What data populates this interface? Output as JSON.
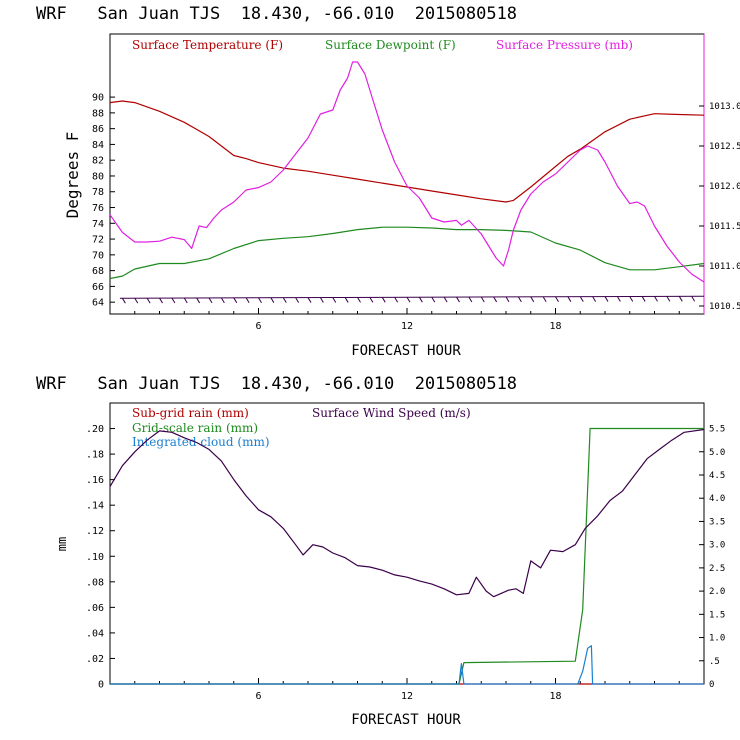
{
  "chart_data": [
    {
      "type": "line",
      "title": "WRF   San Juan TJS  18.430, -66.010  2015080518",
      "xlabel": "FORECAST HOUR",
      "ylabel": "Degrees F",
      "xlim": [
        0,
        24
      ],
      "ylim": [
        62.5,
        98
      ],
      "y2lim": [
        1010.4,
        1013.9
      ],
      "xticks": [
        "6",
        "12",
        "18"
      ],
      "yticks": [
        "64",
        "66",
        "68",
        "70",
        "72",
        "74",
        "76",
        "78",
        "80",
        "82",
        "84",
        "86",
        "88",
        "90"
      ],
      "y2ticks": [
        "1010.5",
        "1011.0",
        "1011.5",
        "1012.0",
        "1012.5",
        "1013.0"
      ],
      "legend": [
        "Surface Temperature (F)",
        "Surface Dewpoint (F)",
        "Surface Pressure (mb)"
      ],
      "wind_barbs": true,
      "series": [
        {
          "name": "Surface Temperature (F)",
          "axis": "left",
          "color": "#b00000",
          "x": [
            0,
            0.5,
            1,
            2,
            3,
            4,
            5,
            5.5,
            6,
            7,
            8,
            9,
            10,
            11,
            12,
            13,
            14,
            15,
            16,
            16.3,
            17,
            18,
            18.5,
            19,
            20,
            21,
            22,
            23,
            24
          ],
          "y": [
            89.3,
            89.5,
            89.3,
            88.2,
            86.8,
            85,
            82.6,
            82.2,
            81.7,
            81,
            80.6,
            80.1,
            79.6,
            79.1,
            78.6,
            78.1,
            77.6,
            77.1,
            76.7,
            76.9,
            78.6,
            81.2,
            82.5,
            83.4,
            85.6,
            87.2,
            87.9,
            87.8,
            87.7
          ]
        },
        {
          "name": "Surface Dewpoint (F)",
          "axis": "left",
          "color": "#1f8a1f",
          "x": [
            0,
            0.5,
            1,
            2,
            3,
            4,
            5,
            6,
            7,
            8,
            9,
            10,
            11,
            12,
            13,
            14,
            15,
            16,
            17,
            18,
            19,
            20,
            21,
            22,
            23,
            24
          ],
          "y": [
            67,
            67.3,
            68.2,
            68.9,
            68.9,
            69.5,
            70.8,
            71.8,
            72.1,
            72.3,
            72.7,
            73.2,
            73.5,
            73.5,
            73.4,
            73.2,
            73.2,
            73.1,
            72.9,
            71.5,
            70.6,
            69,
            68.1,
            68.1,
            68.5,
            68.9
          ]
        },
        {
          "name": "Surface Pressure (mb)",
          "axis": "right",
          "color": "#e020e0",
          "x": [
            0,
            0.5,
            1,
            1.5,
            2,
            2.5,
            3,
            3.3,
            3.6,
            3.9,
            4.2,
            4.5,
            5,
            5.5,
            6,
            6.5,
            7,
            7.5,
            8,
            8.5,
            9,
            9.3,
            9.6,
            9.8,
            10,
            10.3,
            10.6,
            11,
            11.5,
            12,
            12.5,
            13,
            13.5,
            14,
            14.2,
            14.5,
            15,
            15.3,
            15.6,
            15.9,
            16.1,
            16.3,
            16.6,
            17,
            17.5,
            18,
            18.5,
            19,
            19.3,
            19.7,
            20,
            20.5,
            21,
            21.3,
            21.6,
            22,
            22.5,
            23,
            23.5,
            24
          ],
          "y": [
            1011.64,
            1011.42,
            1011.3,
            1011.3,
            1011.31,
            1011.36,
            1011.33,
            1011.22,
            1011.5,
            1011.48,
            1011.6,
            1011.7,
            1011.8,
            1011.95,
            1011.98,
            1012.05,
            1012.2,
            1012.4,
            1012.6,
            1012.9,
            1012.95,
            1013.2,
            1013.35,
            1013.55,
            1013.55,
            1013.4,
            1013.1,
            1012.7,
            1012.3,
            1012.0,
            1011.85,
            1011.6,
            1011.55,
            1011.57,
            1011.51,
            1011.57,
            1011.4,
            1011.25,
            1011.1,
            1011.0,
            1011.2,
            1011.45,
            1011.7,
            1011.9,
            1012.05,
            1012.15,
            1012.3,
            1012.45,
            1012.5,
            1012.45,
            1012.3,
            1012.0,
            1011.78,
            1011.8,
            1011.75,
            1011.5,
            1011.25,
            1011.05,
            1010.9,
            1010.8
          ]
        }
      ]
    },
    {
      "type": "line",
      "title": "WRF   San Juan TJS  18.430, -66.010  2015080518",
      "xlabel": "FORECAST HOUR",
      "ylabel": "mm",
      "xlim": [
        0,
        24
      ],
      "ylim": [
        0,
        0.22
      ],
      "y2lim": [
        0,
        6.05
      ],
      "xticks": [
        "6",
        "12",
        "18"
      ],
      "yticks": [
        "0",
        ".02",
        ".04",
        ".06",
        ".08",
        ".10",
        ".12",
        ".14",
        ".16",
        ".18",
        ".20"
      ],
      "y2ticks": [
        "0",
        ".5",
        "1.0",
        "1.5",
        "2.0",
        "2.5",
        "3.0",
        "3.5",
        "4.0",
        "4.5",
        "5.0",
        "5.5"
      ],
      "legend": [
        "Sub-grid rain (mm)",
        "Grid-scale rain (mm)",
        "Integrated cloud (mm)",
        "Surface Wind Speed (m/s)"
      ],
      "series": [
        {
          "name": "Sub-grid rain (mm)",
          "axis": "right",
          "color": "#b00000",
          "x": [
            0,
            24
          ],
          "y": [
            0,
            0
          ]
        },
        {
          "name": "Grid-scale rain (mm)",
          "axis": "right",
          "color": "#1f8a1f",
          "x": [
            0,
            14.1,
            14.3,
            18.8,
            19.1,
            19.4,
            24
          ],
          "y": [
            0,
            0,
            0.46,
            0.49,
            1.6,
            5.5,
            5.5
          ]
        },
        {
          "name": "Integrated cloud (mm)",
          "axis": "left",
          "color": "#1a7fd0",
          "x": [
            0,
            14.1,
            14.2,
            14.3,
            18.9,
            19.1,
            19.3,
            19.45,
            19.5,
            24
          ],
          "y": [
            0,
            0,
            0.016,
            0,
            0,
            0.01,
            0.028,
            0.03,
            0,
            0
          ]
        },
        {
          "name": "Surface Wind Speed (m/s)",
          "axis": "right",
          "color": "#3a004a",
          "x": [
            0,
            0.5,
            1,
            1.5,
            2,
            2.5,
            3,
            3.5,
            4,
            4.5,
            5,
            5.5,
            6,
            6.5,
            7,
            7.5,
            7.8,
            8.2,
            8.6,
            9,
            9.5,
            10,
            10.5,
            11,
            11.5,
            12,
            12.5,
            13,
            13.5,
            14,
            14.5,
            14.8,
            15.2,
            15.5,
            15.8,
            16.1,
            16.4,
            16.7,
            17,
            17.4,
            17.8,
            18.3,
            18.8,
            19.2,
            19.7,
            20.2,
            20.7,
            21.2,
            21.7,
            22.2,
            22.7,
            23.2,
            24
          ],
          "y": [
            4.25,
            4.7,
            5.0,
            5.25,
            5.45,
            5.42,
            5.3,
            5.2,
            5.05,
            4.8,
            4.4,
            4.05,
            3.75,
            3.6,
            3.35,
            3.0,
            2.78,
            3.0,
            2.95,
            2.82,
            2.72,
            2.55,
            2.52,
            2.45,
            2.35,
            2.3,
            2.22,
            2.15,
            2.05,
            1.92,
            1.95,
            2.3,
            2.0,
            1.88,
            1.95,
            2.02,
            2.05,
            1.95,
            2.65,
            2.5,
            2.88,
            2.85,
            3.0,
            3.35,
            3.62,
            3.95,
            4.15,
            4.5,
            4.85,
            5.05,
            5.25,
            5.42,
            5.48
          ]
        }
      ]
    }
  ]
}
